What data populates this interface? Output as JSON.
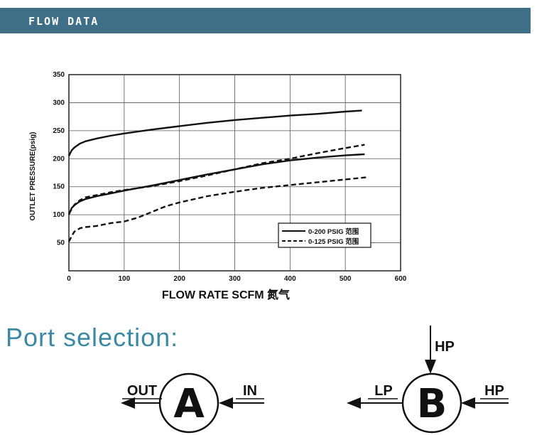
{
  "header": {
    "title": "FLOW DATA"
  },
  "chart_data": {
    "type": "line",
    "ylabel": "OUTLET PRESSURE(psig)",
    "xlabel": "FLOW RATE SCFM 氮气",
    "xlim": [
      0,
      600
    ],
    "ylim": [
      0,
      350
    ],
    "x_ticks": [
      0,
      100,
      200,
      300,
      400,
      500,
      600
    ],
    "y_ticks": [
      50,
      100,
      150,
      200,
      250,
      300,
      350
    ],
    "grid": true,
    "legend_position": "bottom-right",
    "legend": [
      {
        "label": "0-200 PSIG 范围",
        "style": "solid"
      },
      {
        "label": "0-125 PSIG 范围",
        "style": "dashed"
      }
    ],
    "series": [
      {
        "legend_index": 0,
        "style": "solid",
        "x": [
          0,
          5,
          10,
          20,
          30,
          50,
          75,
          100,
          150,
          200,
          250,
          300,
          350,
          400,
          450,
          500,
          530
        ],
        "y": [
          205,
          215,
          220,
          227,
          231,
          236,
          241,
          245,
          252,
          258,
          264,
          269,
          273,
          277,
          280,
          284,
          286
        ]
      },
      {
        "legend_index": 0,
        "style": "solid",
        "x": [
          0,
          5,
          10,
          20,
          30,
          50,
          75,
          100,
          150,
          200,
          250,
          300,
          350,
          400,
          450,
          500,
          535
        ],
        "y": [
          100,
          112,
          117,
          124,
          128,
          133,
          138,
          143,
          152,
          162,
          172,
          181,
          190,
          197,
          202,
          206,
          208
        ]
      },
      {
        "legend_index": 1,
        "style": "dashed",
        "x": [
          0,
          10,
          20,
          30,
          50,
          75,
          100,
          150,
          200,
          250,
          300,
          350,
          400,
          450,
          500,
          535
        ],
        "y": [
          102,
          118,
          126,
          131,
          135,
          140,
          144,
          151,
          160,
          170,
          181,
          192,
          200,
          210,
          219,
          225
        ]
      },
      {
        "legend_index": 1,
        "style": "dashed",
        "x": [
          0,
          5,
          10,
          20,
          30,
          50,
          75,
          100,
          125,
          150,
          175,
          200,
          250,
          300,
          350,
          400,
          450,
          500,
          540
        ],
        "y": [
          52,
          62,
          70,
          76,
          78,
          80,
          85,
          88,
          95,
          105,
          115,
          122,
          133,
          141,
          148,
          153,
          158,
          163,
          167
        ]
      }
    ]
  },
  "ports": {
    "title": "Port selection:",
    "a": {
      "letter": "A",
      "left_label": "OUT",
      "right_label": "IN"
    },
    "b": {
      "letter": "B",
      "top_label": "HP",
      "left_label": "LP",
      "right_label": "HP"
    }
  }
}
